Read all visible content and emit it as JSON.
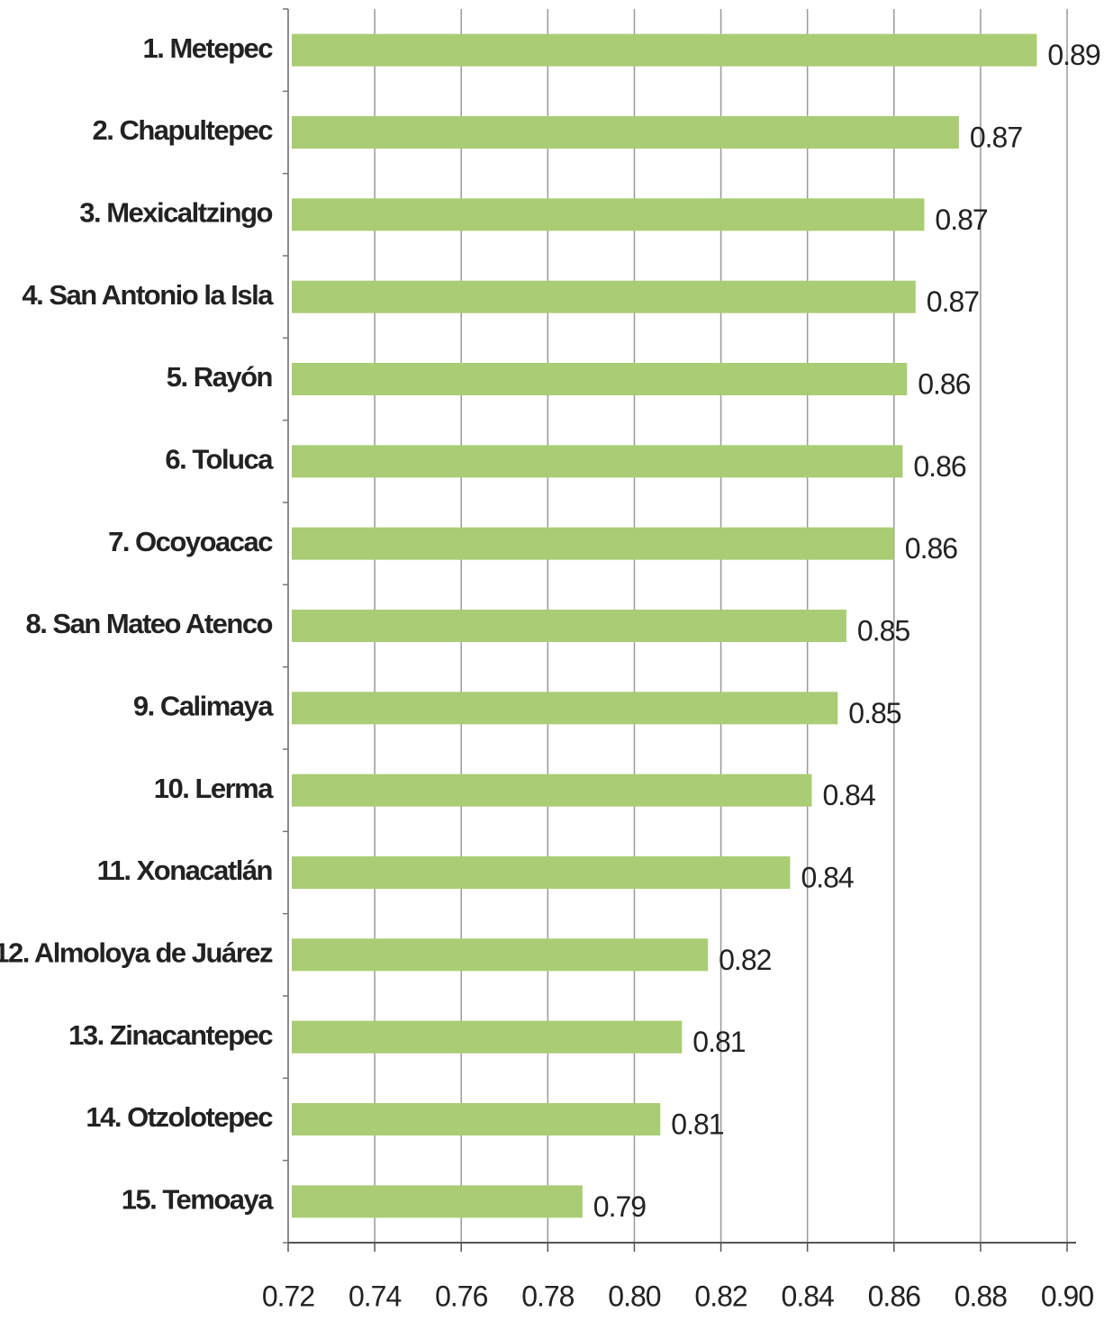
{
  "chart_data": {
    "type": "bar",
    "orientation": "horizontal",
    "categories": [
      "1. Metepec",
      "2. Chapultepec",
      "3. Mexicaltzingo",
      "4. San Antonio la Isla",
      "5. Rayón",
      "6. Toluca",
      "7. Ocoyoacac",
      "8. San Mateo Atenco",
      "9. Calimaya",
      "10. Lerma",
      "11. Xonacatlán",
      "12. Almoloya de Juárez",
      "13. Zinacantepec",
      "14. Otzolotepec",
      "15. Temoaya"
    ],
    "values": [
      0.893,
      0.875,
      0.867,
      0.865,
      0.863,
      0.862,
      0.86,
      0.849,
      0.847,
      0.841,
      0.836,
      0.817,
      0.811,
      0.806,
      0.788
    ],
    "value_labels": [
      "0.89",
      "0.87",
      "0.87",
      "0.87",
      "0.86",
      "0.86",
      "0.86",
      "0.85",
      "0.85",
      "0.84",
      "0.84",
      "0.82",
      "0.81",
      "0.81",
      "0.79"
    ],
    "color": "#aacc74",
    "xlim": [
      0.72,
      0.9
    ],
    "xticks": [
      0.72,
      0.74,
      0.76,
      0.78,
      {
        "value": 0.8,
        "label": "0.80"
      },
      0.82,
      0.84,
      0.86,
      0.88,
      {
        "value": 0.9,
        "label": "0.90"
      }
    ],
    "grid": true
  }
}
